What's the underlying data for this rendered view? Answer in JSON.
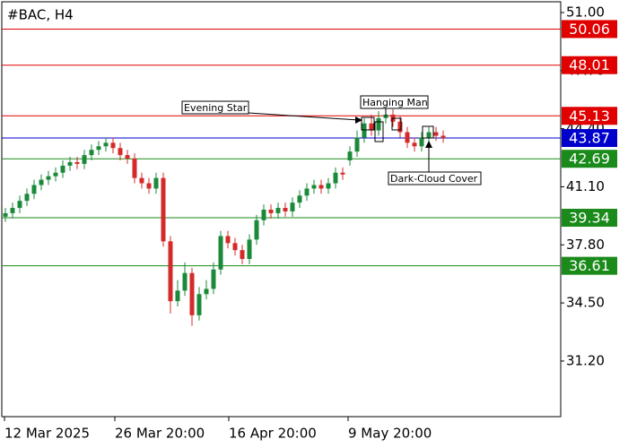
{
  "chart_data": {
    "type": "candlestick",
    "title": "#BAC, H4",
    "open": [
      39.4,
      39.6,
      39.9,
      40.3,
      40.7,
      41.2,
      41.5,
      41.7,
      41.9,
      42.3,
      42.5,
      42.4,
      42.9,
      43.2,
      43.4,
      43.6,
      43.3,
      42.9,
      42.7,
      41.6,
      41.3,
      41.0,
      41.6,
      38.0,
      34.6,
      35.2,
      36.2,
      33.8,
      35.0,
      35.3,
      36.4,
      38.3,
      37.9,
      37.5,
      37.0,
      38.1,
      39.2,
      39.8,
      39.6,
      39.9,
      39.7,
      40.2,
      40.6,
      41.0,
      41.2,
      41.0,
      41.3,
      41.9,
      42.6,
      43.1,
      43.9,
      44.7,
      44.3,
      45.0,
      45.2,
      44.8,
      44.2,
      43.6,
      43.4,
      43.9,
      44.2,
      44.0
    ],
    "high": [
      39.9,
      40.2,
      40.6,
      41.0,
      41.5,
      41.8,
      42.0,
      42.2,
      42.6,
      42.8,
      42.8,
      43.2,
      43.5,
      43.7,
      43.9,
      43.9,
      43.6,
      43.2,
      43.0,
      41.9,
      41.6,
      41.9,
      41.9,
      38.3,
      35.8,
      36.8,
      36.5,
      35.4,
      35.8,
      36.8,
      38.6,
      38.6,
      38.2,
      37.8,
      38.4,
      39.5,
      40.1,
      40.1,
      40.2,
      40.2,
      40.5,
      40.9,
      41.3,
      41.5,
      41.5,
      41.6,
      42.2,
      42.2,
      43.4,
      44.3,
      45.0,
      45.2,
      45.4,
      45.6,
      45.5,
      45.1,
      44.5,
      43.9,
      44.2,
      44.5,
      44.5,
      44.3
    ],
    "low": [
      39.1,
      39.3,
      39.6,
      40.0,
      40.4,
      40.9,
      41.2,
      41.4,
      41.6,
      42.0,
      42.1,
      42.1,
      42.6,
      42.9,
      43.1,
      43.0,
      42.6,
      42.4,
      41.3,
      41.0,
      40.7,
      40.7,
      37.7,
      33.9,
      34.3,
      34.9,
      33.2,
      33.5,
      34.7,
      35.0,
      36.1,
      37.6,
      37.2,
      36.7,
      36.7,
      37.8,
      38.9,
      39.3,
      39.3,
      39.4,
      39.4,
      39.9,
      40.3,
      40.7,
      40.7,
      40.7,
      41.0,
      41.5,
      42.3,
      42.8,
      43.6,
      44.0,
      44.0,
      44.7,
      44.5,
      43.9,
      43.3,
      43.1,
      43.1,
      43.6,
      43.7,
      43.6
    ],
    "close": [
      39.6,
      39.9,
      40.3,
      40.7,
      41.2,
      41.5,
      41.7,
      41.9,
      42.3,
      42.5,
      42.4,
      42.9,
      43.2,
      43.4,
      43.6,
      43.3,
      42.9,
      42.7,
      41.6,
      41.3,
      41.0,
      41.6,
      38.0,
      34.6,
      35.2,
      36.2,
      33.8,
      35.0,
      35.3,
      36.4,
      38.3,
      37.9,
      37.5,
      37.0,
      38.1,
      39.2,
      39.8,
      39.6,
      39.9,
      39.7,
      40.2,
      40.6,
      41.0,
      41.2,
      41.0,
      41.3,
      41.9,
      41.8,
      43.1,
      43.9,
      44.7,
      44.3,
      45.0,
      45.2,
      44.8,
      44.2,
      43.6,
      43.4,
      43.9,
      44.2,
      44.0,
      43.87
    ],
    "up_color": "#1a8a3a",
    "down_color": "#d42a2a",
    "ylim": [
      28.04,
      51.61
    ],
    "yticks": [
      {
        "value": 51.0,
        "label": "51.00"
      },
      {
        "value": 47.7,
        "label": "47.70"
      },
      {
        "value": 44.4,
        "label": "44.40"
      },
      {
        "value": 41.1,
        "label": "41.10"
      },
      {
        "value": 37.8,
        "label": "37.80"
      },
      {
        "value": 34.5,
        "label": "34.50"
      },
      {
        "value": 31.2,
        "label": "31.20"
      }
    ],
    "xtick_labels": [
      "12 Mar 2025",
      "26 Mar 20:00",
      "16 Apr 20:00",
      "9 May 20:00"
    ],
    "levels": [
      {
        "value": 50.06,
        "color": "#e00000"
      },
      {
        "value": 48.01,
        "color": "#e00000"
      },
      {
        "value": 45.13,
        "color": "#e00000"
      },
      {
        "value": 43.87,
        "color": "#0000cc"
      },
      {
        "value": 42.69,
        "color": "#1a8a1a"
      },
      {
        "value": 39.34,
        "color": "#1a8a1a"
      },
      {
        "value": 36.61,
        "color": "#1a8a1a"
      }
    ],
    "annotations": [
      "Evening Star",
      "Hanging Man",
      "Dark-Cloud Cover"
    ]
  }
}
